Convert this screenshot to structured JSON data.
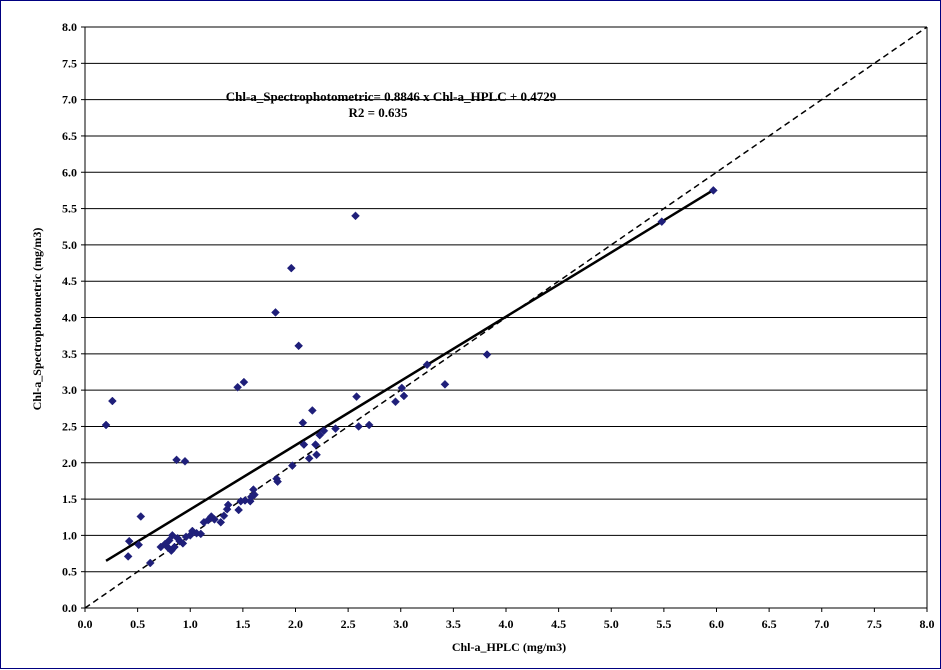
{
  "chart_data": {
    "type": "scatter",
    "xlabel": "Chl-a_HPLC (mg/m3)",
    "ylabel": "Chl-a_Spectrophotometric (mg/m3)",
    "xlim": [
      0,
      8
    ],
    "ylim": [
      0,
      8
    ],
    "x_ticks": [
      "0.0",
      "0.5",
      "1.0",
      "1.5",
      "2.0",
      "2.5",
      "3.0",
      "3.5",
      "4.0",
      "4.5",
      "5.0",
      "5.5",
      "6.0",
      "6.5",
      "7.0",
      "7.5",
      "8.0"
    ],
    "y_ticks": [
      "0.0",
      "0.5",
      "1.0",
      "1.5",
      "2.0",
      "2.5",
      "3.0",
      "3.5",
      "4.0",
      "4.5",
      "5.0",
      "5.5",
      "6.0",
      "6.5",
      "7.0",
      "7.5",
      "8.0"
    ],
    "grid": "horizontal",
    "legend": "none",
    "annotations": {
      "equation": "Chl-a_Spectrophotometric= 0.8846 x Chl-a_HPLC + 0.4729",
      "r2": "R2 = 0.635"
    },
    "trendline": {
      "slope": 0.8846,
      "intercept": 0.4729,
      "x_range": [
        0.2,
        5.97
      ],
      "style": "solid"
    },
    "reference_line": {
      "x_range": [
        0,
        8
      ],
      "y_range": [
        0,
        8
      ],
      "style": "dashed"
    },
    "marker_color": "#1f1f7a",
    "points": [
      [
        0.2,
        2.52
      ],
      [
        0.26,
        2.85
      ],
      [
        0.41,
        0.71
      ],
      [
        0.42,
        0.92
      ],
      [
        0.51,
        0.87
      ],
      [
        0.53,
        1.26
      ],
      [
        0.62,
        0.62
      ],
      [
        0.72,
        0.84
      ],
      [
        0.76,
        0.88
      ],
      [
        0.79,
        0.83
      ],
      [
        0.8,
        0.93
      ],
      [
        0.82,
        0.79
      ],
      [
        0.83,
        1.0
      ],
      [
        0.85,
        0.84
      ],
      [
        0.87,
        2.04
      ],
      [
        0.88,
        0.96
      ],
      [
        0.9,
        0.92
      ],
      [
        0.93,
        0.89
      ],
      [
        0.95,
        2.02
      ],
      [
        0.96,
        0.98
      ],
      [
        1.0,
        1.0
      ],
      [
        1.02,
        1.06
      ],
      [
        1.06,
        1.03
      ],
      [
        1.1,
        1.02
      ],
      [
        1.13,
        1.18
      ],
      [
        1.17,
        1.21
      ],
      [
        1.2,
        1.26
      ],
      [
        1.23,
        1.22
      ],
      [
        1.29,
        1.18
      ],
      [
        1.32,
        1.27
      ],
      [
        1.35,
        1.36
      ],
      [
        1.36,
        1.42
      ],
      [
        1.45,
        3.04
      ],
      [
        1.46,
        1.35
      ],
      [
        1.48,
        1.47
      ],
      [
        1.51,
        3.11
      ],
      [
        1.52,
        1.48
      ],
      [
        1.57,
        1.47
      ],
      [
        1.58,
        1.53
      ],
      [
        1.6,
        1.63
      ],
      [
        1.61,
        1.56
      ],
      [
        1.81,
        4.07
      ],
      [
        1.82,
        1.78
      ],
      [
        1.83,
        1.74
      ],
      [
        1.96,
        4.68
      ],
      [
        1.97,
        1.96
      ],
      [
        2.03,
        3.61
      ],
      [
        2.07,
        2.55
      ],
      [
        2.08,
        2.25
      ],
      [
        2.13,
        2.06
      ],
      [
        2.16,
        2.72
      ],
      [
        2.19,
        2.25
      ],
      [
        2.2,
        2.11
      ],
      [
        2.23,
        2.38
      ],
      [
        2.27,
        2.44
      ],
      [
        2.38,
        2.47
      ],
      [
        2.57,
        5.4
      ],
      [
        2.58,
        2.91
      ],
      [
        2.6,
        2.5
      ],
      [
        2.7,
        2.52
      ],
      [
        2.95,
        2.84
      ],
      [
        3.01,
        3.03
      ],
      [
        3.03,
        2.92
      ],
      [
        3.25,
        3.35
      ],
      [
        3.42,
        3.08
      ],
      [
        3.82,
        3.49
      ],
      [
        5.48,
        5.32
      ],
      [
        5.97,
        5.75
      ]
    ]
  }
}
